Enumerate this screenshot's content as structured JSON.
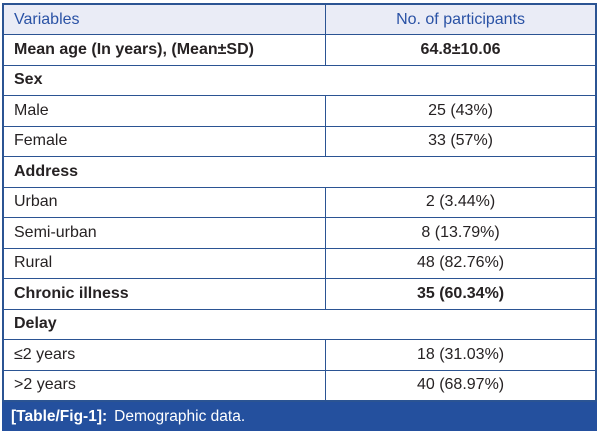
{
  "colors": {
    "border_blue": "#2b5493",
    "header_bg": "#eaecf6",
    "header_text": "#2a52a5",
    "caption_bg": "#24509e",
    "caption_text": "#ffffff",
    "body_text": "#262223"
  },
  "table": {
    "header": {
      "col1": "Variables",
      "col2": "No. of participants"
    },
    "rows": [
      {
        "type": "data",
        "bold": true,
        "label": "Mean age (In years), (Mean±SD)",
        "value": "64.8±10.06"
      },
      {
        "type": "section",
        "bold": true,
        "label": "Sex",
        "value": ""
      },
      {
        "type": "data",
        "bold": false,
        "label": "Male",
        "value": "25 (43%)"
      },
      {
        "type": "data",
        "bold": false,
        "label": "Female",
        "value": "33 (57%)"
      },
      {
        "type": "section",
        "bold": true,
        "label": "Address",
        "value": ""
      },
      {
        "type": "data",
        "bold": false,
        "label": "Urban",
        "value": "2 (3.44%)"
      },
      {
        "type": "data",
        "bold": false,
        "label": "Semi-urban",
        "value": "8 (13.79%)"
      },
      {
        "type": "data",
        "bold": false,
        "label": "Rural",
        "value": "48 (82.76%)"
      },
      {
        "type": "data",
        "bold": true,
        "label": "Chronic illness",
        "value": "35 (60.34%)"
      },
      {
        "type": "section",
        "bold": true,
        "label": "Delay",
        "value": ""
      },
      {
        "type": "data",
        "bold": false,
        "label": "≤2 years",
        "value": "18 (31.03%)"
      },
      {
        "type": "data",
        "bold": false,
        "label": ">2 years",
        "value": "40 (68.97%)"
      }
    ],
    "caption": {
      "tag": "[Table/Fig-1]:",
      "text": "Demographic data."
    }
  }
}
